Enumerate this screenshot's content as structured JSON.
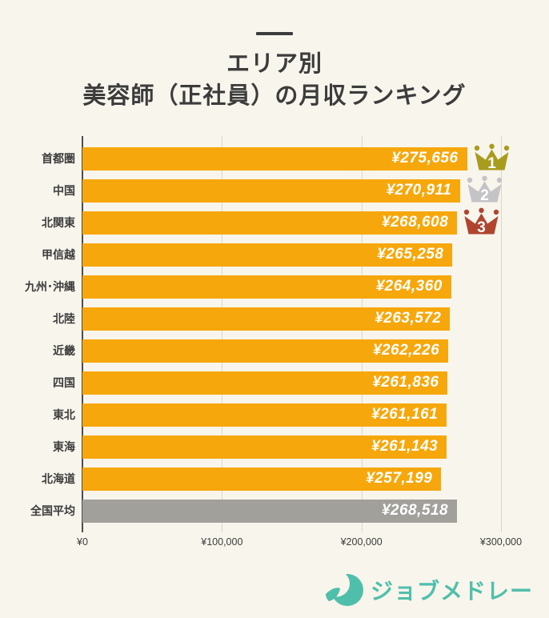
{
  "header": {
    "title_line1": "エリア別",
    "title_line2": "美容師（正社員）の月収ランキング"
  },
  "chart_data": {
    "type": "bar",
    "orientation": "horizontal",
    "title": "エリア別 美容師（正社員）の月収ランキング",
    "xlim": [
      0,
      300000
    ],
    "x_ticks": [
      {
        "label": "¥0",
        "value": 0
      },
      {
        "label": "¥100,000",
        "value": 100000
      },
      {
        "label": "¥200,000",
        "value": 200000
      },
      {
        "label": "¥300,000",
        "value": 300000
      }
    ],
    "categories": [
      "首都圏",
      "中国",
      "北関東",
      "甲信越",
      "九州･沖縄",
      "北陸",
      "近畿",
      "四国",
      "東北",
      "東海",
      "北海道",
      "全国平均"
    ],
    "values": [
      275656,
      270911,
      268608,
      265258,
      264360,
      263572,
      262226,
      261836,
      261161,
      261143,
      257199,
      268518
    ],
    "rows": [
      {
        "label": "首都圏",
        "value": 275656,
        "display": "¥275,656",
        "kind": "area",
        "rank": 1
      },
      {
        "label": "中国",
        "value": 270911,
        "display": "¥270,911",
        "kind": "area",
        "rank": 2
      },
      {
        "label": "北関東",
        "value": 268608,
        "display": "¥268,608",
        "kind": "area",
        "rank": 3
      },
      {
        "label": "甲信越",
        "value": 265258,
        "display": "¥265,258",
        "kind": "area",
        "rank": null
      },
      {
        "label": "九州･沖縄",
        "value": 264360,
        "display": "¥264,360",
        "kind": "area",
        "rank": null
      },
      {
        "label": "北陸",
        "value": 263572,
        "display": "¥263,572",
        "kind": "area",
        "rank": null
      },
      {
        "label": "近畿",
        "value": 262226,
        "display": "¥262,226",
        "kind": "area",
        "rank": null
      },
      {
        "label": "四国",
        "value": 261836,
        "display": "¥261,836",
        "kind": "area",
        "rank": null
      },
      {
        "label": "東北",
        "value": 261161,
        "display": "¥261,161",
        "kind": "area",
        "rank": null
      },
      {
        "label": "東海",
        "value": 261143,
        "display": "¥261,143",
        "kind": "area",
        "rank": null
      },
      {
        "label": "北海道",
        "value": 257199,
        "display": "¥257,199",
        "kind": "area",
        "rank": null
      },
      {
        "label": "全国平均",
        "value": 268518,
        "display": "¥268,518",
        "kind": "average",
        "rank": null
      }
    ],
    "ranks": [
      {
        "label": "1",
        "name": "gold-crown",
        "color": "#A89C1E"
      },
      {
        "label": "2",
        "name": "silver-crown",
        "color": "#C4C3C6"
      },
      {
        "label": "3",
        "name": "bronze-crown",
        "color": "#B0452F"
      }
    ],
    "colors": {
      "bar": "#F6A70B",
      "average_bar": "#A1A09B",
      "background": "#F8F5EC",
      "axis": "#4D4D4D",
      "gridline": "#D9D6CC",
      "text": "#3C3C3C",
      "value_text": "#FFFFFF"
    },
    "grid": "vertical gridlines at x ticks",
    "legend": "none"
  },
  "footer": {
    "logo_text": "ジョブメドレー",
    "logo_color": "#4FBFAC"
  }
}
